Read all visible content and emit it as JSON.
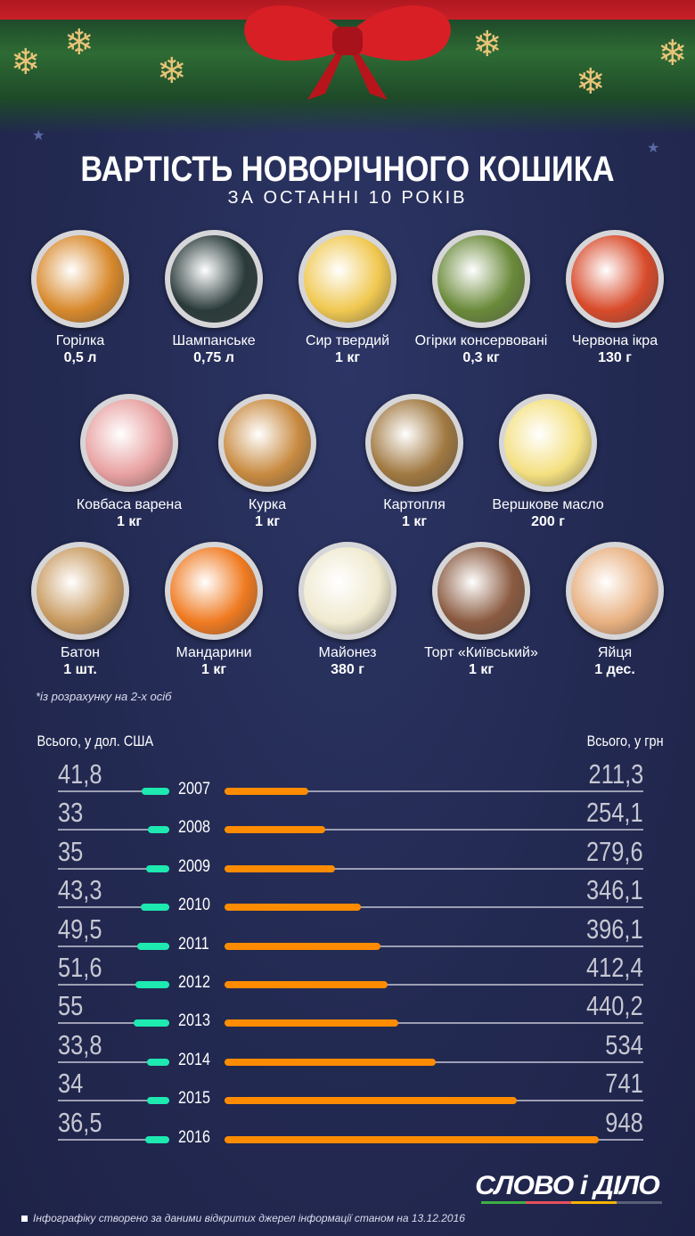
{
  "header": {
    "title": "ВАРТІСТЬ НОВОРІЧНОГО КОШИКА",
    "subtitle": "ЗА ОСТАННІ 10 РОКІВ"
  },
  "items": [
    {
      "name": "Горілка",
      "qty": "0,5 л",
      "color": "#d8892c"
    },
    {
      "name": "Шампанське",
      "qty": "0,75 л",
      "color": "#2a3a3a"
    },
    {
      "name": "Сир твердий",
      "qty": "1 кг",
      "color": "#f0c850"
    },
    {
      "name": "Огірки консервовані",
      "qty": "0,3 кг",
      "color": "#6a8a3a"
    },
    {
      "name": "Червона ікра",
      "qty": "130 г",
      "color": "#d84a2a"
    },
    {
      "name": "Ковбаса варена",
      "qty": "1 кг",
      "color": "#e8a0a0"
    },
    {
      "name": "Курка",
      "qty": "1 кг",
      "color": "#c88a40"
    },
    {
      "name": "Картопля",
      "qty": "1 кг",
      "color": "#a07840"
    },
    {
      "name": "Вершкове масло",
      "qty": "200 г",
      "color": "#f4e080"
    },
    {
      "name": "Батон",
      "qty": "1 шт.",
      "color": "#c89a60"
    },
    {
      "name": "Мандарини",
      "qty": "1 кг",
      "color": "#f07a20"
    },
    {
      "name": "Майонез",
      "qty": "380 г",
      "color": "#f0ead0"
    },
    {
      "name": "Торт «Київський»",
      "qty": "1 кг",
      "color": "#8a5a40"
    },
    {
      "name": "Яйця",
      "qty": "1 дес.",
      "color": "#e8b080"
    }
  ],
  "note": "*із розрахунку на 2-х осіб",
  "chart_data": {
    "type": "bar",
    "left_label": "Всього, у дол. США",
    "right_label": "Всього, у грн",
    "categories": [
      "2007",
      "2008",
      "2009",
      "2010",
      "2011",
      "2012",
      "2013",
      "2014",
      "2015",
      "2016"
    ],
    "series": [
      {
        "name": "USD",
        "color": "#1de9b0",
        "values": [
          41.8,
          33,
          35,
          43.3,
          49.5,
          51.6,
          55,
          33.8,
          34,
          36.5
        ],
        "labels": [
          "41,8",
          "33",
          "35",
          "43,3",
          "49,5",
          "51,6",
          "55",
          "33,8",
          "34",
          "36,5"
        ]
      },
      {
        "name": "UAH",
        "color": "#ff8c00",
        "values": [
          211.3,
          254.1,
          279.6,
          346.1,
          396.1,
          412.4,
          440.2,
          534,
          741,
          948
        ],
        "labels": [
          "211,3",
          "254,1",
          "279,6",
          "346,1",
          "396,1",
          "412,4",
          "440,2",
          "534",
          "741",
          "948"
        ]
      }
    ]
  },
  "logo": "СЛОВО і ДІЛО",
  "footer": "Інфографіку створено за даними відкритих джерел інформації станом на 13.12.2016"
}
